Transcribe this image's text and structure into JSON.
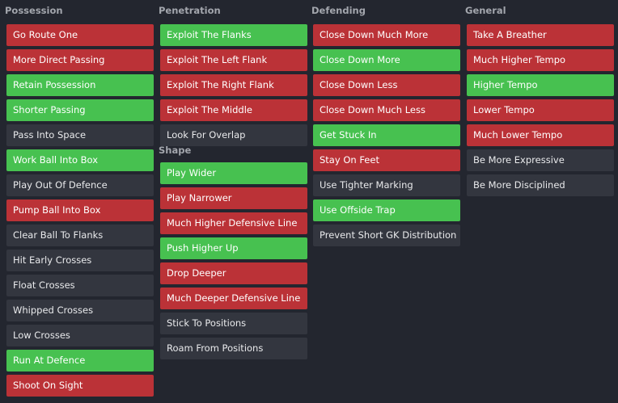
{
  "colors": {
    "background": "#23262f",
    "header_text": "#a3a6ad",
    "red": "#bb3237",
    "green": "#47c150",
    "neutral": "#33363f"
  },
  "columns": [
    {
      "title": "Possession",
      "groups": [
        {
          "items": [
            {
              "label": "Go Route One",
              "state": "red"
            },
            {
              "label": "More Direct Passing",
              "state": "red"
            },
            {
              "label": "Retain Possession",
              "state": "green"
            },
            {
              "label": "Shorter Passing",
              "state": "green"
            },
            {
              "label": "Pass Into Space",
              "state": "neutral"
            },
            {
              "label": "Work Ball Into Box",
              "state": "green"
            },
            {
              "label": "Play Out Of Defence",
              "state": "neutral"
            },
            {
              "label": "Pump Ball Into Box",
              "state": "red"
            },
            {
              "label": "Clear Ball To Flanks",
              "state": "neutral"
            },
            {
              "label": "Hit Early Crosses",
              "state": "neutral"
            },
            {
              "label": "Float Crosses",
              "state": "neutral"
            },
            {
              "label": "Whipped Crosses",
              "state": "neutral"
            },
            {
              "label": "Low Crosses",
              "state": "neutral"
            },
            {
              "label": "Run At Defence",
              "state": "green"
            },
            {
              "label": "Shoot On Sight",
              "state": "red"
            }
          ]
        }
      ]
    },
    {
      "title": "Penetration",
      "groups": [
        {
          "items": [
            {
              "label": "Exploit The Flanks",
              "state": "green"
            },
            {
              "label": "Exploit The Left Flank",
              "state": "red"
            },
            {
              "label": "Exploit The Right Flank",
              "state": "red"
            },
            {
              "label": "Exploit The Middle",
              "state": "red"
            },
            {
              "label": "Look For Overlap",
              "state": "neutral"
            }
          ]
        },
        {
          "title": "Shape",
          "items": [
            {
              "label": "Play Wider",
              "state": "green"
            },
            {
              "label": "Play Narrower",
              "state": "red"
            },
            {
              "label": "Much Higher Defensive Line",
              "state": "red"
            },
            {
              "label": "Push Higher Up",
              "state": "green"
            },
            {
              "label": "Drop Deeper",
              "state": "red"
            },
            {
              "label": "Much Deeper Defensive Line",
              "state": "red"
            },
            {
              "label": "Stick To Positions",
              "state": "neutral"
            },
            {
              "label": "Roam From Positions",
              "state": "neutral"
            }
          ]
        }
      ]
    },
    {
      "title": "Defending",
      "groups": [
        {
          "items": [
            {
              "label": "Close Down Much More",
              "state": "red"
            },
            {
              "label": "Close Down More",
              "state": "green"
            },
            {
              "label": "Close Down Less",
              "state": "red"
            },
            {
              "label": "Close Down Much Less",
              "state": "red"
            },
            {
              "label": "Get Stuck In",
              "state": "green"
            },
            {
              "label": "Stay On Feet",
              "state": "red"
            },
            {
              "label": "Use Tighter Marking",
              "state": "neutral"
            },
            {
              "label": "Use Offside Trap",
              "state": "green"
            },
            {
              "label": "Prevent Short GK Distribution",
              "state": "neutral"
            }
          ]
        }
      ]
    },
    {
      "title": "General",
      "groups": [
        {
          "items": [
            {
              "label": "Take A Breather",
              "state": "red"
            },
            {
              "label": "Much Higher Tempo",
              "state": "red"
            },
            {
              "label": "Higher Tempo",
              "state": "green"
            },
            {
              "label": "Lower Tempo",
              "state": "red"
            },
            {
              "label": "Much Lower Tempo",
              "state": "red"
            },
            {
              "label": "Be More Expressive",
              "state": "neutral"
            },
            {
              "label": "Be More Disciplined",
              "state": "neutral"
            }
          ]
        }
      ]
    }
  ]
}
